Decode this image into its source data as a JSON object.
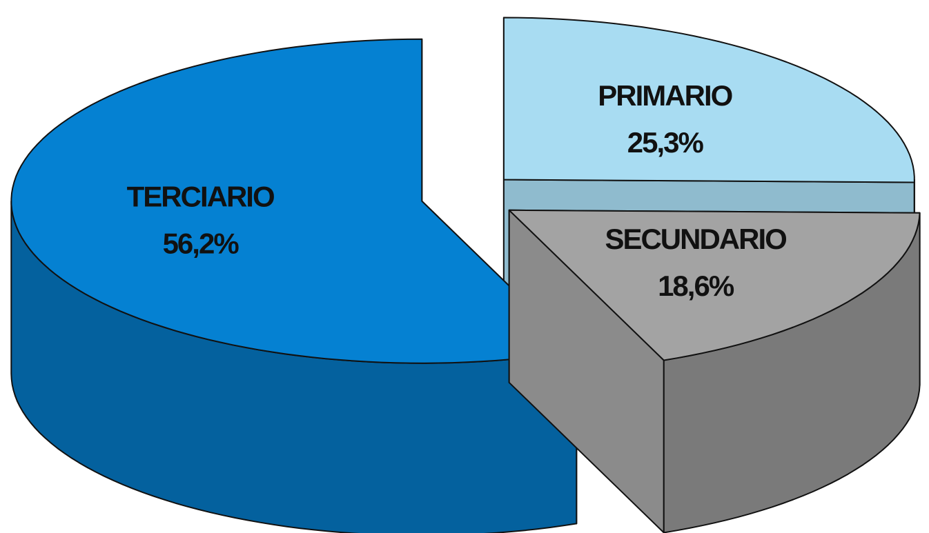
{
  "chart_data": {
    "type": "pie",
    "categories": [
      "PRIMARIO",
      "SECUNDARIO",
      "TERCIARIO"
    ],
    "values": [
      25.3,
      18.6,
      56.2
    ],
    "value_labels": [
      "25,3%",
      "18,6%",
      "56,2%"
    ],
    "colors": [
      "#a8dcf2",
      "#a3a3a3",
      "#0581d2"
    ],
    "exploded": true,
    "three_d": true
  }
}
